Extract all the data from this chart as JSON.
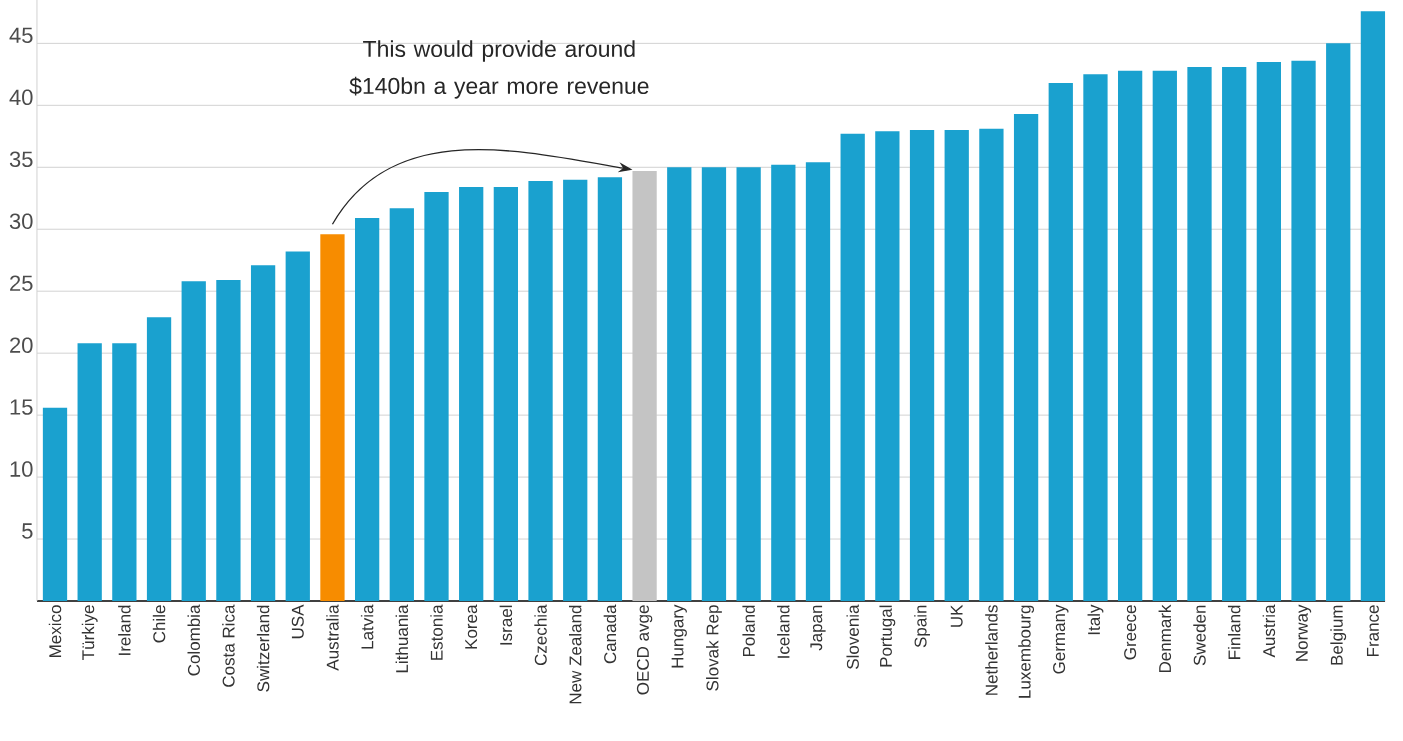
{
  "chart_data": {
    "type": "bar",
    "categories": [
      "Mexico",
      "Türkiye",
      "Ireland",
      "Chile",
      "Colombia",
      "Costa Rica",
      "Switzerland",
      "USA",
      "Australia",
      "Latvia",
      "Lithuania",
      "Estonia",
      "Korea",
      "Israel",
      "Czechia",
      "New Zealand",
      "Canada",
      "OECD avge",
      "Hungary",
      "Slovak Rep",
      "Poland",
      "Iceland",
      "Japan",
      "Slovenia",
      "Portugal",
      "Spain",
      "UK",
      "Netherlands",
      "Luxembourg",
      "Germany",
      "Italy",
      "Greece",
      "Denmark",
      "Sweden",
      "Finland",
      "Austria",
      "Norway",
      "Belgium",
      "France"
    ],
    "values": [
      15.6,
      20.8,
      20.8,
      22.9,
      25.8,
      25.9,
      27.1,
      28.2,
      29.6,
      30.9,
      31.7,
      33.0,
      33.4,
      33.4,
      33.9,
      34.0,
      34.2,
      34.7,
      35.0,
      35.0,
      35.0,
      35.2,
      35.4,
      37.7,
      37.9,
      38.0,
      38.0,
      38.1,
      39.3,
      41.8,
      42.5,
      42.8,
      42.8,
      43.1,
      43.1,
      43.5,
      43.6,
      45.0,
      47.6
    ],
    "colors": [
      "#1aa1cf",
      "#1aa1cf",
      "#1aa1cf",
      "#1aa1cf",
      "#1aa1cf",
      "#1aa1cf",
      "#1aa1cf",
      "#1aa1cf",
      "#f78c00",
      "#1aa1cf",
      "#1aa1cf",
      "#1aa1cf",
      "#1aa1cf",
      "#1aa1cf",
      "#1aa1cf",
      "#1aa1cf",
      "#1aa1cf",
      "#c4c4c4",
      "#1aa1cf",
      "#1aa1cf",
      "#1aa1cf",
      "#1aa1cf",
      "#1aa1cf",
      "#1aa1cf",
      "#1aa1cf",
      "#1aa1cf",
      "#1aa1cf",
      "#1aa1cf",
      "#1aa1cf",
      "#1aa1cf",
      "#1aa1cf",
      "#1aa1cf",
      "#1aa1cf",
      "#1aa1cf",
      "#1aa1cf",
      "#1aa1cf",
      "#1aa1cf",
      "#1aa1cf",
      "#1aa1cf"
    ],
    "ylim": [
      0,
      48.5
    ],
    "yticks": [
      5,
      10,
      15,
      20,
      25,
      30,
      35,
      40,
      45
    ],
    "grid": "y",
    "annotations": [
      "This would provide around $140bn a year more revenue"
    ]
  }
}
